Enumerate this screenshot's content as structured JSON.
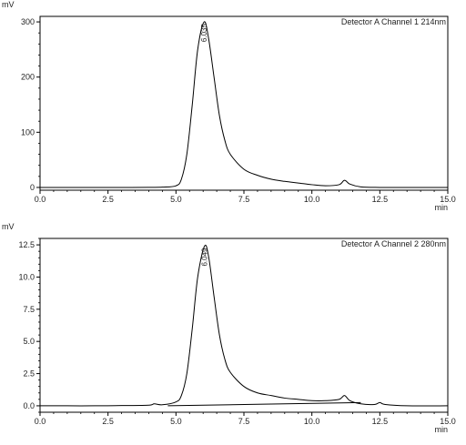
{
  "chart_data": [
    {
      "type": "line",
      "title": "Detector A Channel 1 214nm",
      "xlabel": "min",
      "ylabel": "mV",
      "xlim": [
        0,
        15
      ],
      "ylim": [
        -5,
        310
      ],
      "x_ticks": [
        "0.0",
        "2.5",
        "5.0",
        "7.5",
        "10.0",
        "12.5",
        "15.0"
      ],
      "y_ticks": [
        "0",
        "100",
        "200",
        "300"
      ],
      "y_tick_values": [
        0,
        100,
        200,
        300
      ],
      "peak_label": "6.035",
      "series": [
        {
          "x": [
            0,
            1,
            2,
            3,
            4,
            4.5,
            5.0,
            5.2,
            5.4,
            5.6,
            5.8,
            6.035,
            6.2,
            6.4,
            6.6,
            6.8,
            7.0,
            7.5,
            8.0,
            8.5,
            9.0,
            9.5,
            10.0,
            10.5,
            11.0,
            11.2,
            11.4,
            11.8,
            12.5,
            13.5,
            15.0
          ],
          "y": [
            0,
            0,
            0,
            0,
            0.2,
            0.5,
            3,
            15,
            60,
            150,
            250,
            300,
            270,
            200,
            130,
            85,
            60,
            33,
            22,
            15,
            11,
            8,
            5,
            3,
            5,
            13,
            6,
            1,
            0,
            0,
            0
          ]
        }
      ]
    },
    {
      "type": "line",
      "title": "Detector A Channel 2 280nm",
      "xlabel": "min",
      "ylabel": "mV",
      "xlim": [
        0,
        15
      ],
      "ylim": [
        -0.5,
        13
      ],
      "x_ticks": [
        "0.0",
        "2.5",
        "5.0",
        "7.5",
        "10.0",
        "12.5",
        "15.0"
      ],
      "y_ticks": [
        "0.0",
        "2.5",
        "5.0",
        "7.5",
        "10.0",
        "12.5"
      ],
      "y_tick_values": [
        0,
        2.5,
        5,
        7.5,
        10,
        12.5
      ],
      "peak_label": "6.049",
      "series": [
        {
          "x": [
            0,
            1,
            2,
            3,
            4,
            4.2,
            4.5,
            5.0,
            5.2,
            5.4,
            5.6,
            5.8,
            6.049,
            6.2,
            6.4,
            6.6,
            6.8,
            7.0,
            7.5,
            8.0,
            8.5,
            9.0,
            9.5,
            10.0,
            10.5,
            11.0,
            11.2,
            11.4,
            11.8,
            12.3,
            12.5,
            12.7,
            13.5,
            15.0
          ],
          "y": [
            0,
            0,
            0,
            0.02,
            0.05,
            0.15,
            0.08,
            0.3,
            0.8,
            2.5,
            6.0,
            10.0,
            12.4,
            11.6,
            8.5,
            5.5,
            3.6,
            2.6,
            1.5,
            1.0,
            0.8,
            0.6,
            0.5,
            0.4,
            0.4,
            0.5,
            0.8,
            0.4,
            0.15,
            0.1,
            0.25,
            0.1,
            0,
            0
          ]
        },
        {
          "x": [
            4.7,
            11.8
          ],
          "y": [
            0,
            0.25
          ]
        }
      ]
    }
  ]
}
